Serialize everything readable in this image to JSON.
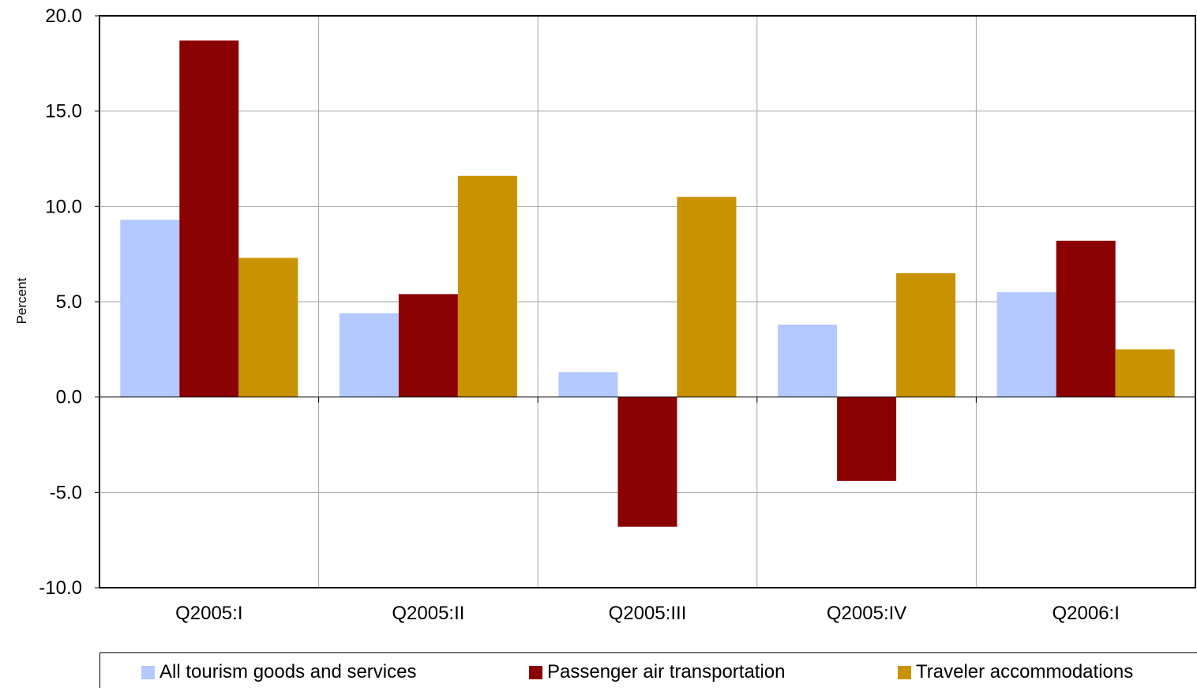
{
  "chart_data": {
    "type": "bar",
    "categories": [
      "Q2005:I",
      "Q2005:II",
      "Q2005:III",
      "Q2005:IV",
      "Q2006:I"
    ],
    "series": [
      {
        "name": "All tourism goods and services",
        "color": "#b3c9ff",
        "values": [
          9.3,
          4.4,
          1.3,
          3.8,
          5.5
        ]
      },
      {
        "name": "Passenger air transportation",
        "color": "#8b0000",
        "values": [
          18.7,
          5.4,
          -6.8,
          -4.4,
          8.2
        ]
      },
      {
        "name": "Traveler accommodations",
        "color": "#c89200",
        "values": [
          7.3,
          11.6,
          10.5,
          6.5,
          2.5
        ]
      }
    ],
    "ylabel": "Percent",
    "ylim": [
      -10,
      20
    ],
    "yticks": [
      "20.0",
      "15.0",
      "10.0",
      "5.0",
      "0.0",
      "-5.0",
      "-10.0"
    ],
    "grid": true,
    "legend_position": "bottom"
  }
}
